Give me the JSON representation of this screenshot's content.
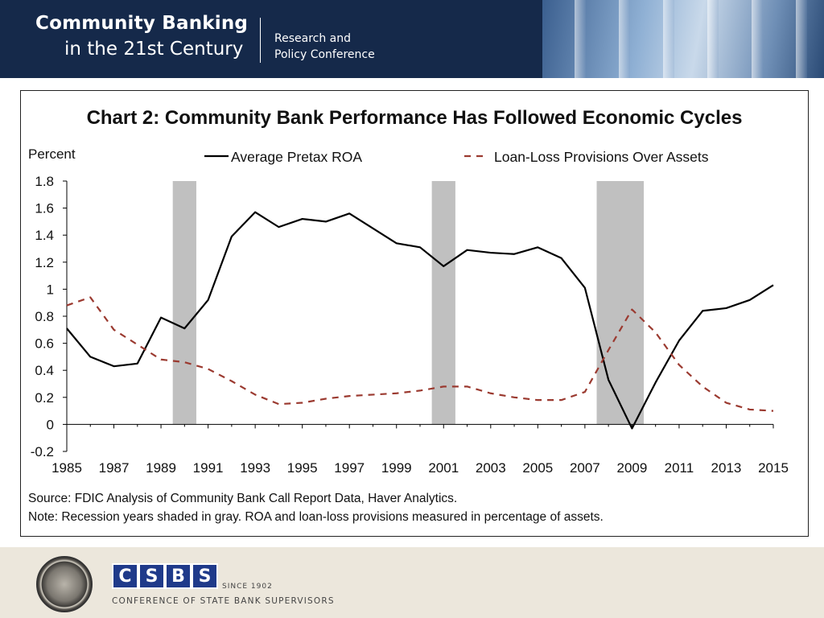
{
  "header": {
    "title_line1": "Community Banking",
    "title_line2": "in the 21st Century",
    "subtitle_line1": "Research and",
    "subtitle_line2": "Policy Conference"
  },
  "footer": {
    "csbs_letters": [
      "C",
      "S",
      "B",
      "S"
    ],
    "csbs_since": "SINCE 1902",
    "csbs_full": "CONFERENCE OF STATE BANK SUPERVISORS"
  },
  "colors": {
    "roa_line": "#000000",
    "provisions_line": "#9b3a30",
    "recession_shade": "#c0c0c0",
    "banner": "#15294a"
  },
  "chart_data": {
    "type": "line",
    "title": "Chart 2: Community Bank Performance Has Followed Economic Cycles",
    "ylabel": "Percent",
    "xlabel": "",
    "ylim": [
      -0.2,
      1.8
    ],
    "yticks": [
      "-0.2",
      "0",
      "0.2",
      "0.4",
      "0.6",
      "0.8",
      "1",
      "1.2",
      "1.4",
      "1.6",
      "1.8"
    ],
    "xlim": [
      1985,
      2015
    ],
    "xticks": [
      "1985",
      "1987",
      "1989",
      "1991",
      "1993",
      "1995",
      "1997",
      "1999",
      "2001",
      "2003",
      "2005",
      "2007",
      "2009",
      "2011",
      "2013",
      "2015"
    ],
    "legend_position": "top",
    "recessions": [
      [
        1989.5,
        1990.5
      ],
      [
        2000.5,
        2001.5
      ],
      [
        2007.5,
        2009.5
      ]
    ],
    "x": [
      1985,
      1986,
      1987,
      1988,
      1989,
      1990,
      1991,
      1992,
      1993,
      1994,
      1995,
      1996,
      1997,
      1998,
      1999,
      2000,
      2001,
      2002,
      2003,
      2004,
      2005,
      2006,
      2007,
      2008,
      2009,
      2010,
      2011,
      2012,
      2013,
      2014,
      2015
    ],
    "series": [
      {
        "name": "Average Pretax ROA",
        "style": "solid",
        "values": [
          0.71,
          0.5,
          0.43,
          0.45,
          0.79,
          0.71,
          0.92,
          1.39,
          1.57,
          1.46,
          1.52,
          1.5,
          1.56,
          1.45,
          1.34,
          1.31,
          1.17,
          1.29,
          1.27,
          1.26,
          1.31,
          1.23,
          1.01,
          0.33,
          -0.03,
          0.31,
          0.62,
          0.84,
          0.86,
          0.92,
          1.03
        ]
      },
      {
        "name": "Loan-Loss Provisions Over Assets",
        "style": "dashed",
        "values": [
          0.88,
          0.94,
          0.7,
          0.59,
          0.48,
          0.46,
          0.41,
          0.32,
          0.22,
          0.15,
          0.16,
          0.19,
          0.21,
          0.22,
          0.23,
          0.25,
          0.28,
          0.28,
          0.23,
          0.2,
          0.18,
          0.18,
          0.24,
          0.55,
          0.85,
          0.68,
          0.44,
          0.28,
          0.16,
          0.11,
          0.1
        ]
      }
    ],
    "source": "Source: FDIC Analysis of Community Bank Call Report Data, Haver Analytics.",
    "note": "Note: Recession years shaded in gray. ROA and loan-loss provisions measured in percentage of assets."
  }
}
